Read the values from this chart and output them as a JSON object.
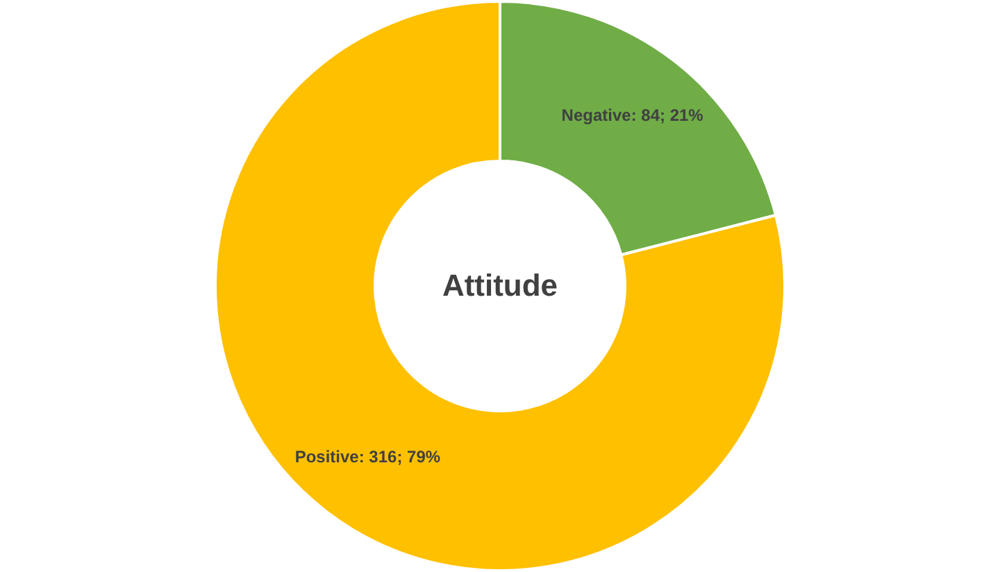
{
  "chart_data": {
    "type": "donut",
    "title": "Attitude",
    "categories": [
      "Negative",
      "Positive"
    ],
    "values": [
      84,
      316
    ],
    "colors": [
      "#70ad47",
      "#ffc000"
    ],
    "value_labels": [
      "84; 21%",
      "316; 79%"
    ]
  }
}
